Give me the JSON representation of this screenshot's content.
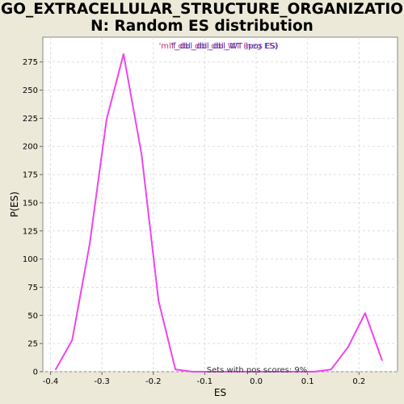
{
  "chart_data": {
    "type": "line",
    "title_line1": "GO_EXTRACELLULAR_STRUCTURE_ORGANIZATIO",
    "title_line2": "N: Random ES distribution",
    "xlabel": "ES",
    "ylabel": "P(ES)",
    "xlim": [
      -0.415,
      0.275
    ],
    "ylim": [
      0,
      297
    ],
    "x_ticks": [
      -0.4,
      -0.3,
      -0.2,
      -0.1,
      0.0,
      0.1,
      0.2
    ],
    "x_tick_labels": [
      "-0.4",
      "-0.3",
      "-0.2",
      "-0.1",
      "0.0",
      "0.1",
      "0.2"
    ],
    "y_ticks": [
      0,
      25,
      50,
      75,
      100,
      125,
      150,
      175,
      200,
      225,
      250,
      275
    ],
    "y_tick_labels": [
      "0",
      "25",
      "50",
      "75",
      "100",
      "125",
      "150",
      "175",
      "200",
      "225",
      "250",
      "275"
    ],
    "grid": true,
    "legend_texts": [
      {
        "text": "'mlf_dbl_dbl_dbl_WT (neg ES)",
        "color": "#cc3366"
      },
      {
        "text": "'f_dbl_dbl_dbl_WT (pos ES)",
        "color": "#3333cc"
      }
    ],
    "annotation": "Sets with pos scores: 9%",
    "series": [
      {
        "color": "#ee44ee",
        "x": [
          -0.39,
          -0.358,
          -0.324,
          -0.291,
          -0.258,
          -0.223,
          -0.19,
          -0.157,
          -0.124,
          0.08,
          0.113,
          0.146,
          0.179,
          0.212,
          0.245
        ],
        "y": [
          2,
          28,
          113,
          224,
          282,
          193,
          63,
          2,
          0,
          0,
          0,
          2,
          22,
          52,
          10
        ]
      }
    ]
  }
}
